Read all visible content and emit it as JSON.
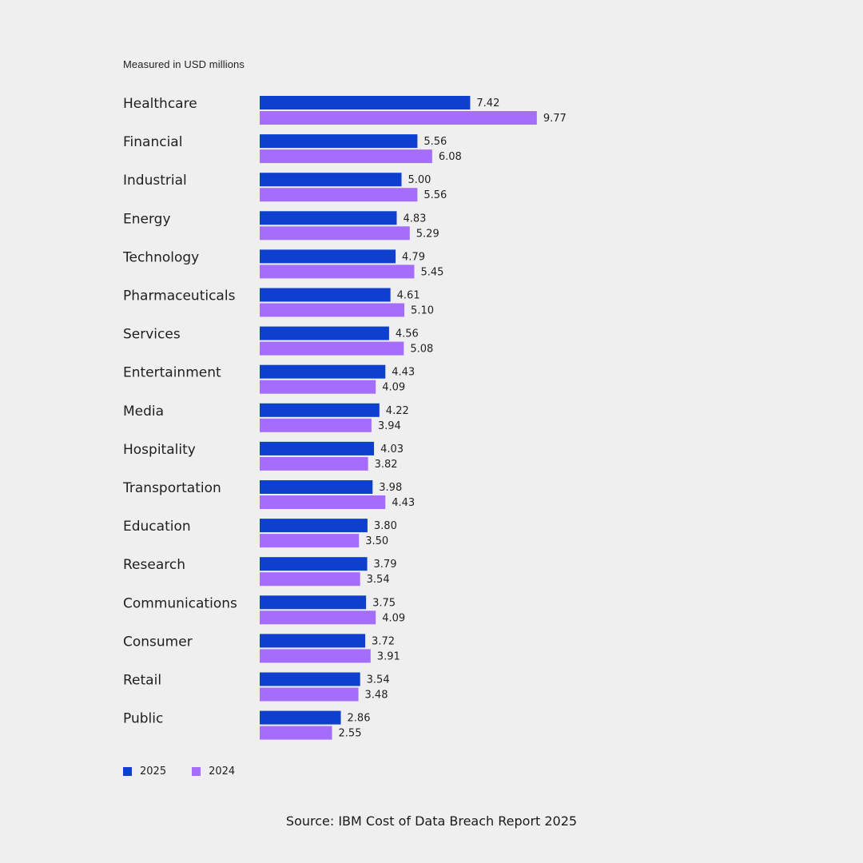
{
  "chart_data": {
    "type": "bar",
    "orientation": "horizontal",
    "subtitle": "Measured in USD millions",
    "categories": [
      "Healthcare",
      "Financial",
      "Industrial",
      "Energy",
      "Technology",
      "Pharmaceuticals",
      "Services",
      "Entertainment",
      "Media",
      "Hospitality",
      "Transportation",
      "Education",
      "Research",
      "Communications",
      "Consumer",
      "Retail",
      "Public"
    ],
    "series": [
      {
        "name": "2025",
        "color": "#0f3fcf",
        "values": [
          7.42,
          5.56,
          5.0,
          4.83,
          4.79,
          4.61,
          4.56,
          4.43,
          4.22,
          4.03,
          3.98,
          3.8,
          3.79,
          3.75,
          3.72,
          3.54,
          2.86
        ]
      },
      {
        "name": "2024",
        "color": "#a56dfc",
        "values": [
          9.77,
          6.08,
          5.56,
          5.29,
          5.45,
          5.1,
          5.08,
          4.09,
          3.94,
          3.82,
          4.43,
          3.5,
          3.54,
          4.09,
          3.91,
          3.48,
          2.55
        ]
      }
    ],
    "value_labels": [
      [
        "7.42",
        "5.56",
        "5.00",
        "4.83",
        "4.79",
        "4.61",
        "4.56",
        "4.43",
        "4.22",
        "4.03",
        "3.98",
        "3.80",
        "3.79",
        "3.75",
        "3.72",
        "3.54",
        "2.86"
      ],
      [
        "9.77",
        "6.08",
        "5.56",
        "5.29",
        "5.45",
        "5.10",
        "5.08",
        "4.09",
        "3.94",
        "3.82",
        "4.43",
        "3.50",
        "3.54",
        "4.09",
        "3.91",
        "3.48",
        "2.55"
      ]
    ],
    "legend_position": "bottom-left",
    "grid": false
  },
  "legend": {
    "item_2025": "2025",
    "item_2024": "2024"
  },
  "source": "Source: IBM Cost of Data Breach Report 2025"
}
